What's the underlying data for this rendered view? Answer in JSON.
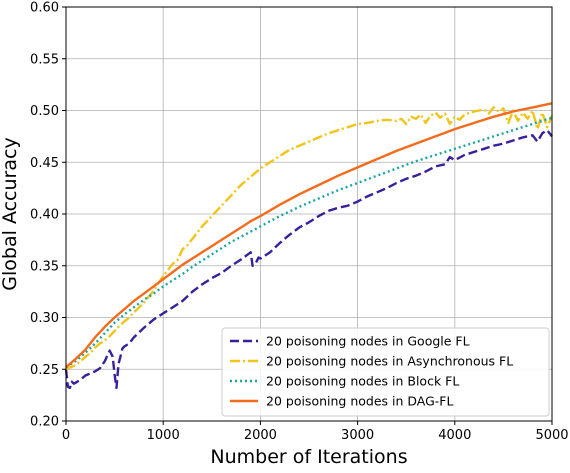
{
  "chart_data": {
    "type": "line",
    "title": "",
    "xlabel": "Number of Iterations",
    "ylabel": "Global Accuracy",
    "xlim": [
      0,
      5000
    ],
    "ylim": [
      0.2,
      0.6
    ],
    "xticks": [
      0,
      1000,
      2000,
      3000,
      4000,
      5000
    ],
    "xtick_labels": [
      "0",
      "1000",
      "2000",
      "3000",
      "4000",
      "5000"
    ],
    "yticks": [
      0.2,
      0.25,
      0.3,
      0.35,
      0.4,
      0.45,
      0.5,
      0.55,
      0.6
    ],
    "ytick_labels": [
      "0.20",
      "0.25",
      "0.30",
      "0.35",
      "0.40",
      "0.45",
      "0.50",
      "0.55",
      "0.60"
    ],
    "grid": true,
    "legend_position": "lower-right",
    "series": [
      {
        "name": "20 poisoning nodes in Google FL",
        "color": "#3a1f9c",
        "dash": "dashed",
        "x": [
          0,
          20,
          40,
          60,
          80,
          100,
          150,
          200,
          250,
          300,
          350,
          400,
          420,
          450,
          480,
          500,
          520,
          540,
          560,
          580,
          600,
          650,
          700,
          800,
          900,
          1000,
          1100,
          1200,
          1300,
          1400,
          1500,
          1600,
          1700,
          1800,
          1900,
          1920,
          1950,
          1980,
          2000,
          2100,
          2200,
          2300,
          2400,
          2500,
          2600,
          2700,
          2800,
          2900,
          3000,
          3100,
          3200,
          3300,
          3400,
          3500,
          3600,
          3700,
          3800,
          3900,
          3950,
          4000,
          4100,
          4200,
          4300,
          4400,
          4500,
          4600,
          4700,
          4800,
          4850,
          4900,
          4950,
          5000
        ],
        "y": [
          0.25,
          0.233,
          0.232,
          0.238,
          0.236,
          0.237,
          0.24,
          0.244,
          0.246,
          0.248,
          0.251,
          0.258,
          0.262,
          0.268,
          0.262,
          0.245,
          0.232,
          0.255,
          0.262,
          0.27,
          0.272,
          0.275,
          0.281,
          0.29,
          0.298,
          0.304,
          0.31,
          0.316,
          0.325,
          0.332,
          0.338,
          0.343,
          0.35,
          0.356,
          0.363,
          0.35,
          0.352,
          0.358,
          0.357,
          0.363,
          0.372,
          0.38,
          0.387,
          0.392,
          0.398,
          0.403,
          0.406,
          0.408,
          0.412,
          0.417,
          0.421,
          0.425,
          0.43,
          0.434,
          0.437,
          0.441,
          0.446,
          0.448,
          0.455,
          0.452,
          0.457,
          0.46,
          0.463,
          0.466,
          0.468,
          0.471,
          0.474,
          0.476,
          0.47,
          0.478,
          0.481,
          0.475
        ]
      },
      {
        "name": "20 poisoning nodes in Asynchronous FL",
        "color": "#f0c419",
        "dash": "dashdot",
        "x": [
          0,
          50,
          100,
          150,
          200,
          250,
          300,
          350,
          400,
          450,
          500,
          550,
          600,
          650,
          700,
          800,
          900,
          1000,
          1100,
          1150,
          1200,
          1250,
          1300,
          1400,
          1500,
          1600,
          1700,
          1800,
          1900,
          2000,
          2100,
          2200,
          2300,
          2400,
          2500,
          2600,
          2700,
          2800,
          2900,
          3000,
          3100,
          3200,
          3300,
          3400,
          3450,
          3500,
          3550,
          3600,
          3650,
          3700,
          3750,
          3800,
          3850,
          3900,
          3950,
          4000,
          4050,
          4100,
          4200,
          4300,
          4350,
          4400,
          4450,
          4500,
          4550,
          4600,
          4650,
          4700,
          4750,
          4800,
          4850,
          4900,
          4950,
          5000
        ],
        "y": [
          0.25,
          0.252,
          0.254,
          0.258,
          0.262,
          0.266,
          0.271,
          0.275,
          0.278,
          0.282,
          0.287,
          0.292,
          0.296,
          0.3,
          0.305,
          0.314,
          0.326,
          0.34,
          0.352,
          0.356,
          0.366,
          0.37,
          0.376,
          0.388,
          0.398,
          0.408,
          0.418,
          0.428,
          0.436,
          0.444,
          0.45,
          0.456,
          0.462,
          0.466,
          0.47,
          0.474,
          0.478,
          0.481,
          0.484,
          0.487,
          0.488,
          0.49,
          0.491,
          0.49,
          0.492,
          0.487,
          0.494,
          0.492,
          0.496,
          0.488,
          0.495,
          0.498,
          0.493,
          0.497,
          0.487,
          0.494,
          0.491,
          0.496,
          0.499,
          0.501,
          0.497,
          0.503,
          0.499,
          0.502,
          0.488,
          0.5,
          0.49,
          0.498,
          0.492,
          0.5,
          0.482,
          0.498,
          0.484,
          0.495
        ]
      },
      {
        "name": "20 poisoning nodes in Block FL",
        "color": "#1ba5a0",
        "dash": "dotted",
        "x": [
          0,
          100,
          200,
          300,
          400,
          500,
          600,
          700,
          800,
          900,
          1000,
          1100,
          1200,
          1300,
          1400,
          1500,
          1600,
          1700,
          1800,
          1900,
          2000,
          2200,
          2400,
          2600,
          2800,
          3000,
          3200,
          3400,
          3600,
          3800,
          4000,
          4200,
          4400,
          4600,
          4800,
          5000
        ],
        "y": [
          0.252,
          0.258,
          0.266,
          0.275,
          0.285,
          0.295,
          0.303,
          0.31,
          0.317,
          0.323,
          0.33,
          0.336,
          0.342,
          0.349,
          0.355,
          0.361,
          0.367,
          0.373,
          0.378,
          0.383,
          0.388,
          0.398,
          0.407,
          0.415,
          0.423,
          0.43,
          0.437,
          0.444,
          0.451,
          0.457,
          0.463,
          0.469,
          0.475,
          0.481,
          0.487,
          0.493
        ]
      },
      {
        "name": "20 poisoning nodes in DAG-FL",
        "color": "#f36b1c",
        "dash": "solid",
        "x": [
          0,
          100,
          200,
          300,
          400,
          500,
          600,
          700,
          800,
          900,
          1000,
          1100,
          1200,
          1300,
          1400,
          1500,
          1600,
          1700,
          1800,
          1900,
          2000,
          2200,
          2400,
          2600,
          2800,
          3000,
          3200,
          3400,
          3600,
          3800,
          4000,
          4200,
          4400,
          4600,
          4800,
          5000
        ],
        "y": [
          0.252,
          0.26,
          0.269,
          0.281,
          0.291,
          0.3,
          0.308,
          0.316,
          0.323,
          0.33,
          0.337,
          0.344,
          0.351,
          0.357,
          0.363,
          0.369,
          0.375,
          0.381,
          0.387,
          0.393,
          0.398,
          0.409,
          0.419,
          0.428,
          0.437,
          0.445,
          0.453,
          0.461,
          0.468,
          0.475,
          0.482,
          0.488,
          0.494,
          0.499,
          0.503,
          0.507
        ]
      }
    ]
  }
}
